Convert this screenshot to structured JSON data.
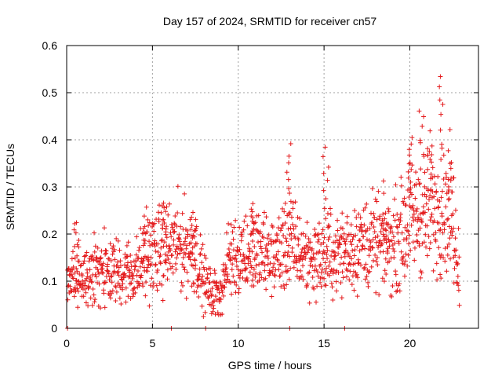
{
  "chart_data": {
    "type": "scatter",
    "title": "Day 157 of 2024, SRMTID for receiver cn57",
    "xlabel": "GPS time / hours",
    "ylabel": "SRMTID / TECUs",
    "xlim": [
      0,
      24
    ],
    "ylim": [
      0,
      0.6
    ],
    "x_ticks": [
      0,
      5,
      10,
      15,
      20
    ],
    "x_tick_labels": [
      "0",
      "5",
      "10",
      "15",
      "20"
    ],
    "y_ticks": [
      0,
      0.1,
      0.2,
      0.3,
      0.4,
      0.5,
      0.6
    ],
    "y_tick_labels": [
      "0",
      "0.1",
      "0.2",
      "0.3",
      "0.4",
      "0.5",
      "0.6"
    ],
    "grid": true,
    "marker": "+",
    "series": [
      {
        "name": "SRMTID",
        "color": "#e41a1c",
        "trend_x": [
          0,
          0.5,
          1,
          2,
          3,
          4,
          4.5,
          5,
          6,
          6.5,
          7.5,
          8,
          8.5,
          9,
          9.5,
          10,
          11,
          12,
          13,
          14,
          15,
          16,
          17,
          18,
          19,
          20,
          21,
          22,
          22.5,
          22.9
        ],
        "trend_y": [
          0.1,
          0.11,
          0.11,
          0.12,
          0.12,
          0.12,
          0.14,
          0.16,
          0.17,
          0.18,
          0.16,
          0.1,
          0.07,
          0.08,
          0.15,
          0.16,
          0.16,
          0.15,
          0.18,
          0.15,
          0.15,
          0.16,
          0.18,
          0.18,
          0.18,
          0.22,
          0.23,
          0.25,
          0.22,
          0.11
        ],
        "spikes": [
          {
            "x": 0.6,
            "y": 0.24
          },
          {
            "x": 4.6,
            "y": 0.26
          },
          {
            "x": 5.7,
            "y": 0.28
          },
          {
            "x": 7.4,
            "y": 0.25
          },
          {
            "x": 10.9,
            "y": 0.27
          },
          {
            "x": 12.9,
            "y": 0.4
          },
          {
            "x": 15.1,
            "y": 0.4
          },
          {
            "x": 18.6,
            "y": 0.24
          },
          {
            "x": 20.0,
            "y": 0.42
          },
          {
            "x": 20.7,
            "y": 0.47
          },
          {
            "x": 21.2,
            "y": 0.42
          },
          {
            "x": 21.8,
            "y": 0.55
          },
          {
            "x": 22.4,
            "y": 0.38
          }
        ],
        "zero_points": [
          0.05,
          6.1,
          8.1,
          13.0,
          16.2
        ]
      }
    ]
  }
}
